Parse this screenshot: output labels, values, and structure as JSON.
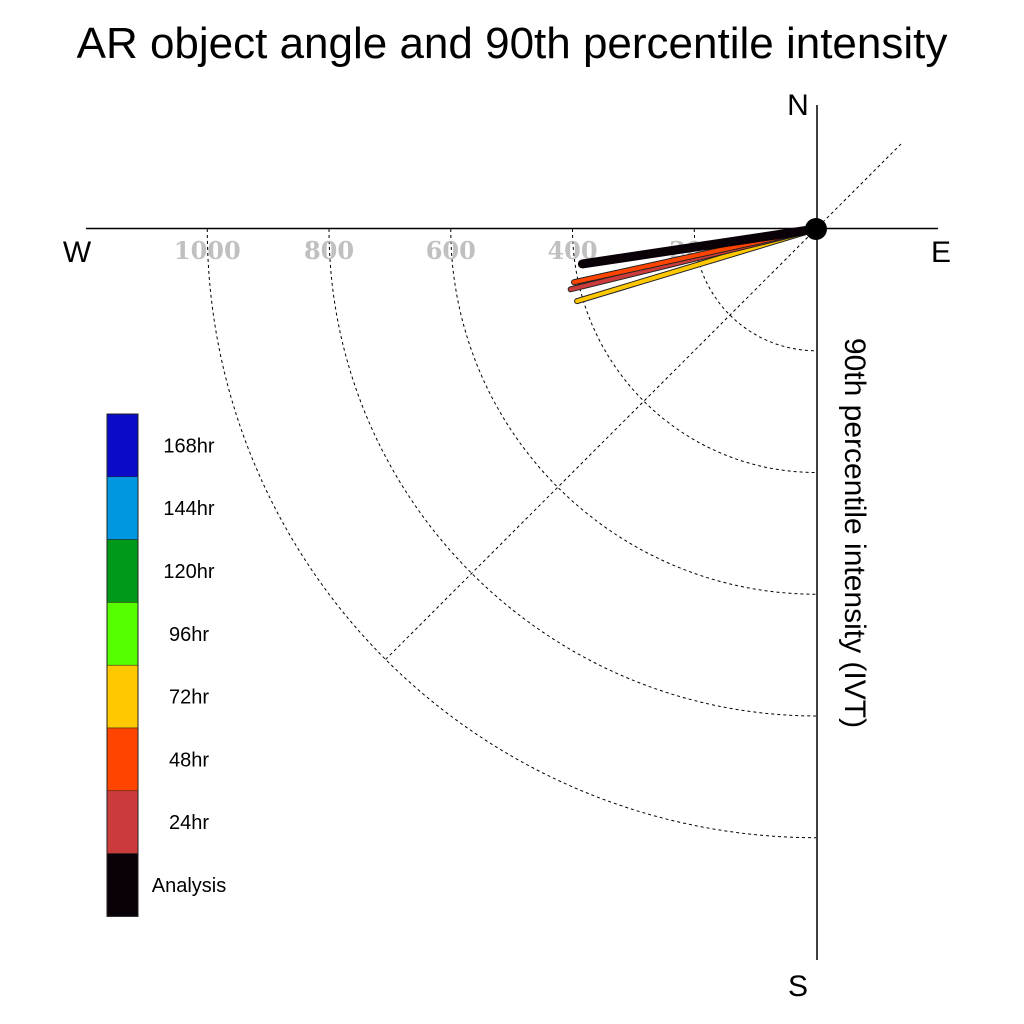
{
  "chart_data": {
    "type": "polar-quadrant",
    "title": "AR object angle and 90th percentile intensity",
    "ylabel": "90th percentile intensity (IVT)",
    "compass": {
      "north": "N",
      "south": "S",
      "east": "E",
      "west": "W"
    },
    "radial_ticks": [
      1000,
      800,
      600,
      400,
      200
    ],
    "radial_tick_labels": [
      "1000",
      "800",
      "600",
      "400",
      "200"
    ],
    "radial_max": 1200,
    "grid": true,
    "legend_position": "left",
    "legend": [
      {
        "label": "168hr",
        "color": "#0a0ac8"
      },
      {
        "label": "144hr",
        "color": "#0096e0"
      },
      {
        "label": "120hr",
        "color": "#009a18"
      },
      {
        "label": "96hr",
        "color": "#55ff00"
      },
      {
        "label": "72hr",
        "color": "#ffc800"
      },
      {
        "label": "48hr",
        "color": "#ff4400"
      },
      {
        "label": "24hr",
        "color": "#cc3b3b"
      },
      {
        "label": "Analysis",
        "color": "#0a0008"
      }
    ],
    "series": [
      {
        "name": "72hr",
        "angle_deg_from_west": 16.8,
        "intensity": 410,
        "color": "#ffc800"
      },
      {
        "name": "24hr",
        "angle_deg_from_west": 13.8,
        "intensity": 415,
        "color": "#cc3b3b"
      },
      {
        "name": "48hr",
        "angle_deg_from_west": 12.4,
        "intensity": 407,
        "color": "#ff4400"
      },
      {
        "name": "Analysis",
        "angle_deg_from_west": 8.5,
        "intensity": 388,
        "color": "#0a0008"
      }
    ],
    "origin_marker": true
  }
}
